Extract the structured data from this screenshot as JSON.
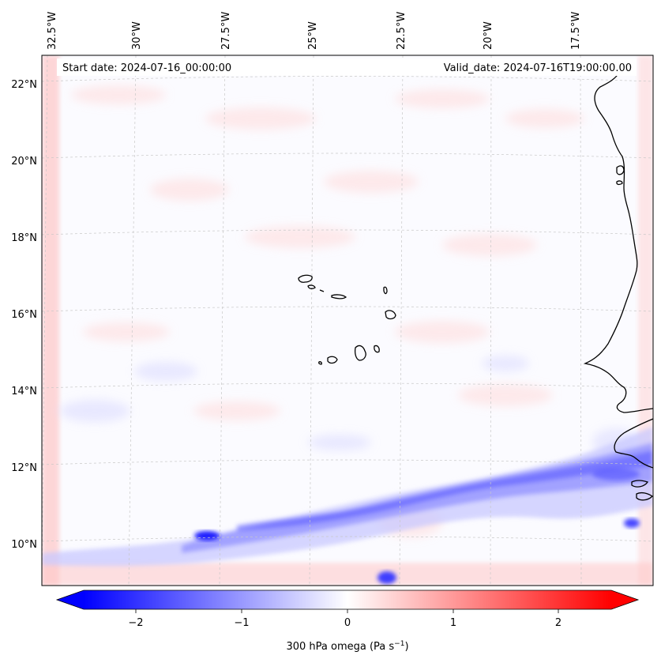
{
  "map": {
    "header": {
      "start_date": "Start date: 2024-07-16_00:00:00",
      "valid_date": "Valid_date: 2024-07-16T19:00:00.00"
    },
    "longitude_labels": [
      "32.5°W",
      "30°W",
      "27.5°W",
      "25°W",
      "22.5°W",
      "20°W",
      "17.5°W"
    ],
    "latitude_labels": [
      "22°N",
      "20°N",
      "18°N",
      "16°N",
      "14°N",
      "12°N",
      "10°N"
    ],
    "field": "300 hPa omega",
    "colormap": {
      "negative": "#0000ff",
      "zero": "#ffffff",
      "positive": "#ff0000"
    }
  },
  "colorbar": {
    "ticks": [
      "−2",
      "−1",
      "0",
      "1",
      "2"
    ],
    "label_main": "300 hPa omega (Pa s",
    "label_sup": "−1",
    "label_end": ")",
    "min": -2.6,
    "max": 2.6
  }
}
